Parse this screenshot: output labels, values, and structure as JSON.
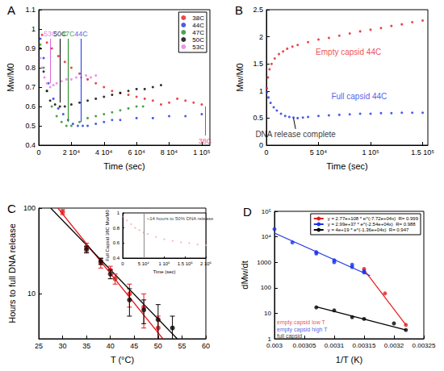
{
  "chart_data": [
    {
      "type": "scatter",
      "title": "A",
      "x_label": "Time (sec)",
      "y_label": "Mw/M0",
      "xlim": [
        0,
        105000
      ],
      "xticks": [
        0,
        {
          "value": 20000,
          "label": "2 10⁴"
        },
        {
          "value": 40000,
          "label": "4 10⁴"
        },
        {
          "value": 60000,
          "label": "6 10⁴"
        },
        {
          "value": 80000,
          "label": "8 10⁴"
        },
        {
          "value": 100000,
          "label": "1 10⁵"
        }
      ],
      "ylim": [
        0.4,
        1.1
      ],
      "yticks": [
        0.4,
        0.5,
        0.6,
        0.7,
        0.8,
        0.9,
        1,
        1.1
      ],
      "grid": false,
      "legend": "upper right",
      "series": [
        {
          "name": "38C",
          "color": "#e41a1c",
          "marker": "circle",
          "x": [
            2000,
            5000,
            8000,
            12000,
            16000,
            20000,
            25000,
            30000,
            35000,
            40000,
            45000,
            50000,
            55000,
            60000,
            65000,
            70000,
            75000,
            80000,
            85000,
            90000,
            95000,
            100000
          ],
          "values": [
            0.97,
            0.93,
            0.9,
            0.86,
            0.83,
            0.8,
            0.77,
            0.74,
            0.72,
            0.7,
            0.68,
            0.67,
            0.66,
            0.65,
            0.64,
            0.63,
            0.61,
            0.62,
            0.64,
            0.63,
            0.62,
            0.61
          ]
        },
        {
          "name": "44C",
          "color": "#1a33e6",
          "marker": "circle",
          "x": [
            1000,
            3000,
            6000,
            9000,
            12000,
            15000,
            18000,
            21000,
            24000,
            27000,
            30000,
            35000,
            40000,
            45000,
            50000,
            60000,
            70000,
            80000,
            90000,
            100000
          ],
          "values": [
            0.95,
            0.85,
            0.72,
            0.64,
            0.59,
            0.56,
            0.53,
            0.51,
            0.5,
            0.5,
            0.5,
            0.51,
            0.52,
            0.53,
            0.53,
            0.54,
            0.54,
            0.55,
            0.55,
            0.56
          ]
        },
        {
          "name": "47C",
          "color": "#1e8c1e",
          "marker": "circle",
          "x": [
            1000,
            3000,
            5000,
            8000,
            11000,
            14000,
            17000,
            20000,
            25000,
            30000,
            35000,
            40000,
            45000,
            50000,
            55000,
            60000,
            64000
          ],
          "values": [
            0.92,
            0.8,
            0.68,
            0.6,
            0.55,
            0.52,
            0.5,
            0.5,
            0.52,
            0.54,
            0.55,
            0.56,
            0.57,
            0.58,
            0.59,
            0.6,
            0.6
          ]
        },
        {
          "name": "50C",
          "color": "#000000",
          "marker": "circle",
          "x": [
            1000,
            3000,
            5000,
            7000,
            10000,
            13000,
            16000,
            20000,
            25000,
            30000,
            35000,
            40000,
            45000,
            50000,
            55000,
            60000,
            65000,
            70000,
            75000
          ],
          "values": [
            0.9,
            0.78,
            0.68,
            0.63,
            0.61,
            0.6,
            0.6,
            0.61,
            0.62,
            0.63,
            0.64,
            0.65,
            0.66,
            0.67,
            0.68,
            0.69,
            0.69,
            0.7,
            0.71
          ]
        },
        {
          "name": "53C",
          "color": "#e47be4",
          "marker": "circle",
          "x": [
            1000,
            2000,
            3500,
            5000,
            7000,
            9000,
            11000,
            14000,
            17000,
            20000,
            23000,
            26000,
            29000,
            32000,
            35000
          ],
          "values": [
            0.85,
            0.8,
            0.75,
            0.72,
            0.7,
            0.71,
            0.72,
            0.73,
            0.74,
            0.74,
            0.75,
            0.75,
            0.76,
            0.75,
            0.76
          ]
        }
      ],
      "annotations": [
        {
          "text": "53C",
          "x": 7000,
          "y": 0.95,
          "arrow": [
            7000,
            0.72
          ],
          "color": "#e066e0"
        },
        {
          "text": "50C",
          "x": 13000,
          "y": 0.95,
          "arrow": [
            13000,
            0.62
          ],
          "color": "#000000"
        },
        {
          "text": "47C",
          "x": 18000,
          "y": 0.95,
          "arrow": [
            18000,
            0.52
          ],
          "color": "#1e8c1e"
        },
        {
          "text": "44C",
          "x": 26000,
          "y": 0.95,
          "arrow": [
            26000,
            0.52
          ],
          "color": "#1a33e6"
        },
        {
          "text": "38C",
          "x": 102000,
          "y": 0.45,
          "arrow": [
            102000,
            0.6
          ],
          "color": "#e0307a"
        }
      ]
    },
    {
      "type": "scatter",
      "title": "B",
      "y_label": "Mw/M0",
      "x_label": "Time (sec)",
      "xlim": [
        0,
        155000
      ],
      "xticks": [
        0,
        {
          "value": 50000,
          "label": "5 10⁴"
        },
        {
          "value": 100000,
          "label": "1 10⁵"
        },
        {
          "value": 150000,
          "label": "1.5 10⁵"
        }
      ],
      "ylim": [
        0,
        2.5
      ],
      "yticks": [
        0,
        0.5,
        1,
        1.5,
        2,
        2.5
      ],
      "grid": false,
      "series": [
        {
          "color": "#e41a1c",
          "marker": "circle",
          "x": [
            500,
            1500,
            3000,
            5000,
            8000,
            12000,
            16000,
            20000,
            25000,
            30000,
            40000,
            50000,
            60000,
            70000,
            80000,
            90000,
            100000,
            110000,
            120000,
            130000,
            140000,
            150000
          ],
          "values": [
            1.05,
            1.25,
            1.4,
            1.5,
            1.6,
            1.68,
            1.73,
            1.78,
            1.82,
            1.85,
            1.9,
            1.95,
            1.98,
            2.02,
            2.06,
            2.1,
            2.13,
            2.16,
            2.2,
            2.23,
            2.27,
            2.3
          ]
        },
        {
          "color": "#1a33e6",
          "marker": "circle",
          "x": [
            500,
            2000,
            4000,
            7000,
            10000,
            14000,
            18000,
            22000,
            26000,
            30000,
            35000,
            40000,
            50000,
            60000,
            70000,
            80000,
            90000,
            100000,
            110000,
            120000,
            130000,
            140000,
            150000
          ],
          "values": [
            0.98,
            0.88,
            0.78,
            0.7,
            0.64,
            0.58,
            0.54,
            0.52,
            0.51,
            0.5,
            0.51,
            0.52,
            0.54,
            0.55,
            0.56,
            0.57,
            0.58,
            0.58,
            0.59,
            0.59,
            0.6,
            0.6,
            0.6
          ]
        }
      ],
      "annotations": [
        {
          "text": "Empty capsid 44C",
          "x": 45000,
          "y": 1.72,
          "color": "#e41a1c"
        },
        {
          "text": "Full capsid 44C",
          "x": 60000,
          "y": 0.9,
          "color": "#1a33e6"
        },
        {
          "text": "DNA release complete",
          "x": 28000,
          "y": 0.3,
          "arrow": [
            26000,
            0.5
          ],
          "color": "#000000"
        }
      ]
    },
    {
      "type": "scatter",
      "title": "C",
      "x_label": "T (°C)",
      "y_label": "Hours to full DNA release",
      "log": "y",
      "xlim": [
        25,
        60
      ],
      "xticks": [
        25,
        30,
        35,
        40,
        45,
        50,
        55,
        60
      ],
      "ylim": [
        3,
        100
      ],
      "yticks": [
        10,
        100
      ],
      "grid": false,
      "series": [
        {
          "color": "#e41a1c",
          "marker": "circle",
          "x": [
            30,
            35,
            38,
            40,
            41,
            44,
            47,
            50
          ],
          "values": [
            90,
            35,
            23,
            19,
            15,
            10,
            7,
            4
          ],
          "errors": [
            6,
            4,
            3,
            2,
            2,
            3,
            3,
            1.5
          ]
        },
        {
          "color": "#000000",
          "marker": "circle",
          "x": [
            35,
            38,
            40,
            44,
            47,
            50,
            53
          ],
          "values": [
            33,
            24,
            17,
            8.5,
            6.5,
            5,
            4
          ],
          "errors": [
            3,
            2,
            2,
            3,
            2,
            2.5,
            1.5
          ]
        },
        {
          "type": "line",
          "color": "#e41a1c",
          "x": [
            29,
            51
          ],
          "values": [
            100,
            3
          ]
        },
        {
          "type": "line",
          "color": "#000000",
          "x": [
            27.5,
            54
          ],
          "values": [
            100,
            3
          ]
        }
      ]
    },
    {
      "type": "scatter",
      "x_label": "Time (sec)",
      "y_label": "Full Capsid 38C Mw/M0",
      "xlim": [
        0,
        200000
      ],
      "xticks": [
        0,
        {
          "value": 50000,
          "label": "5 10⁴"
        },
        {
          "value": 100000,
          "label": "1 10⁵"
        },
        {
          "value": 150000,
          "label": "1.5 10⁵"
        },
        {
          "value": 200000,
          "label": "2 10⁵"
        }
      ],
      "ylim": [
        0.4,
        1
      ],
      "yticks": [
        0.4,
        0.6,
        0.8,
        1
      ],
      "grid": false,
      "vline_x": 50400,
      "series": [
        {
          "color": "#f4a0a0",
          "marker": "circle",
          "x": [
            2000,
            10000,
            20000,
            30000,
            40000,
            50000,
            60000,
            80000,
            100000,
            120000,
            140000,
            160000,
            180000,
            200000
          ],
          "values": [
            0.95,
            0.9,
            0.85,
            0.8,
            0.77,
            0.74,
            0.72,
            0.68,
            0.65,
            0.63,
            0.61,
            0.6,
            0.58,
            0.57
          ]
        }
      ],
      "annotations": [
        {
          "text": "~14 hours to 50% DNA release",
          "x": 52000,
          "y": 0.92,
          "color": "#000000"
        }
      ]
    },
    {
      "type": "scatter",
      "title": "D",
      "x_label": "1/T (K)",
      "y_label": "dMw/dt",
      "log": "y",
      "xlim": [
        0.003,
        0.00325
      ],
      "xticks": [
        0.003,
        0.00305,
        0.0031,
        0.00315,
        0.0032,
        0.00325
      ],
      "ylim": [
        1,
        100000
      ],
      "yticks": [
        1,
        10,
        100,
        1000,
        {
          "value": 10000,
          "label": "10⁴"
        },
        {
          "value": 100000,
          "label": "10⁵"
        }
      ],
      "grid": false,
      "legend": "upper right",
      "series": [
        {
          "type": "line",
          "name": "y = 2.77e+108 * e^(-7.72e+04x)  R= 0.999",
          "color": "#e41a1c",
          "x": [
            0.00315,
            0.00322
          ],
          "values": [
            500,
            3.5
          ]
        },
        {
          "type": "line",
          "name": "y = 2.99e+37 * e^(-2.54e+04x)  R= 0.988",
          "color": "#1a33e6",
          "x": [
            0.003,
            0.00316
          ],
          "values": [
            14000,
            300
          ]
        },
        {
          "type": "line",
          "name": "y = 4e+19 * e^(-1.36e+04x)  R= 0.947",
          "color": "#000000",
          "x": [
            0.00307,
            0.00322
          ],
          "values": [
            18,
            2.2
          ]
        },
        {
          "color": "#e41a1c",
          "marker": "circle",
          "x": [
            0.00315,
            0.003185,
            0.00322
          ],
          "values": [
            550,
            60,
            3.5
          ]
        },
        {
          "color": "#1a33e6",
          "marker": "circle",
          "x": [
            0.003,
            0.00303,
            0.00307,
            0.00307,
            0.0031,
            0.0031,
            0.00313,
            0.00313,
            0.00315,
            0.00315
          ],
          "values": [
            20000,
            6000,
            2500,
            2200,
            1200,
            1000,
            800,
            650,
            450,
            400
          ]
        },
        {
          "color": "#000000",
          "marker": "circle",
          "x": [
            0.00307,
            0.0031,
            0.00313,
            0.00315,
            0.0032,
            0.00322
          ],
          "values": [
            17,
            13,
            7,
            6,
            4,
            2.2
          ]
        }
      ],
      "annotations": [
        {
          "text": "empty capsid low T",
          "x": 0.003,
          "y": 4.5,
          "color": "#e41a1c"
        },
        {
          "text": "empty capsid high T",
          "x": 0.003,
          "y": 2.3,
          "color": "#1a33e6"
        },
        {
          "text": "full capsid",
          "x": 0.003,
          "y": 1.25,
          "color": "#000000"
        }
      ]
    }
  ]
}
